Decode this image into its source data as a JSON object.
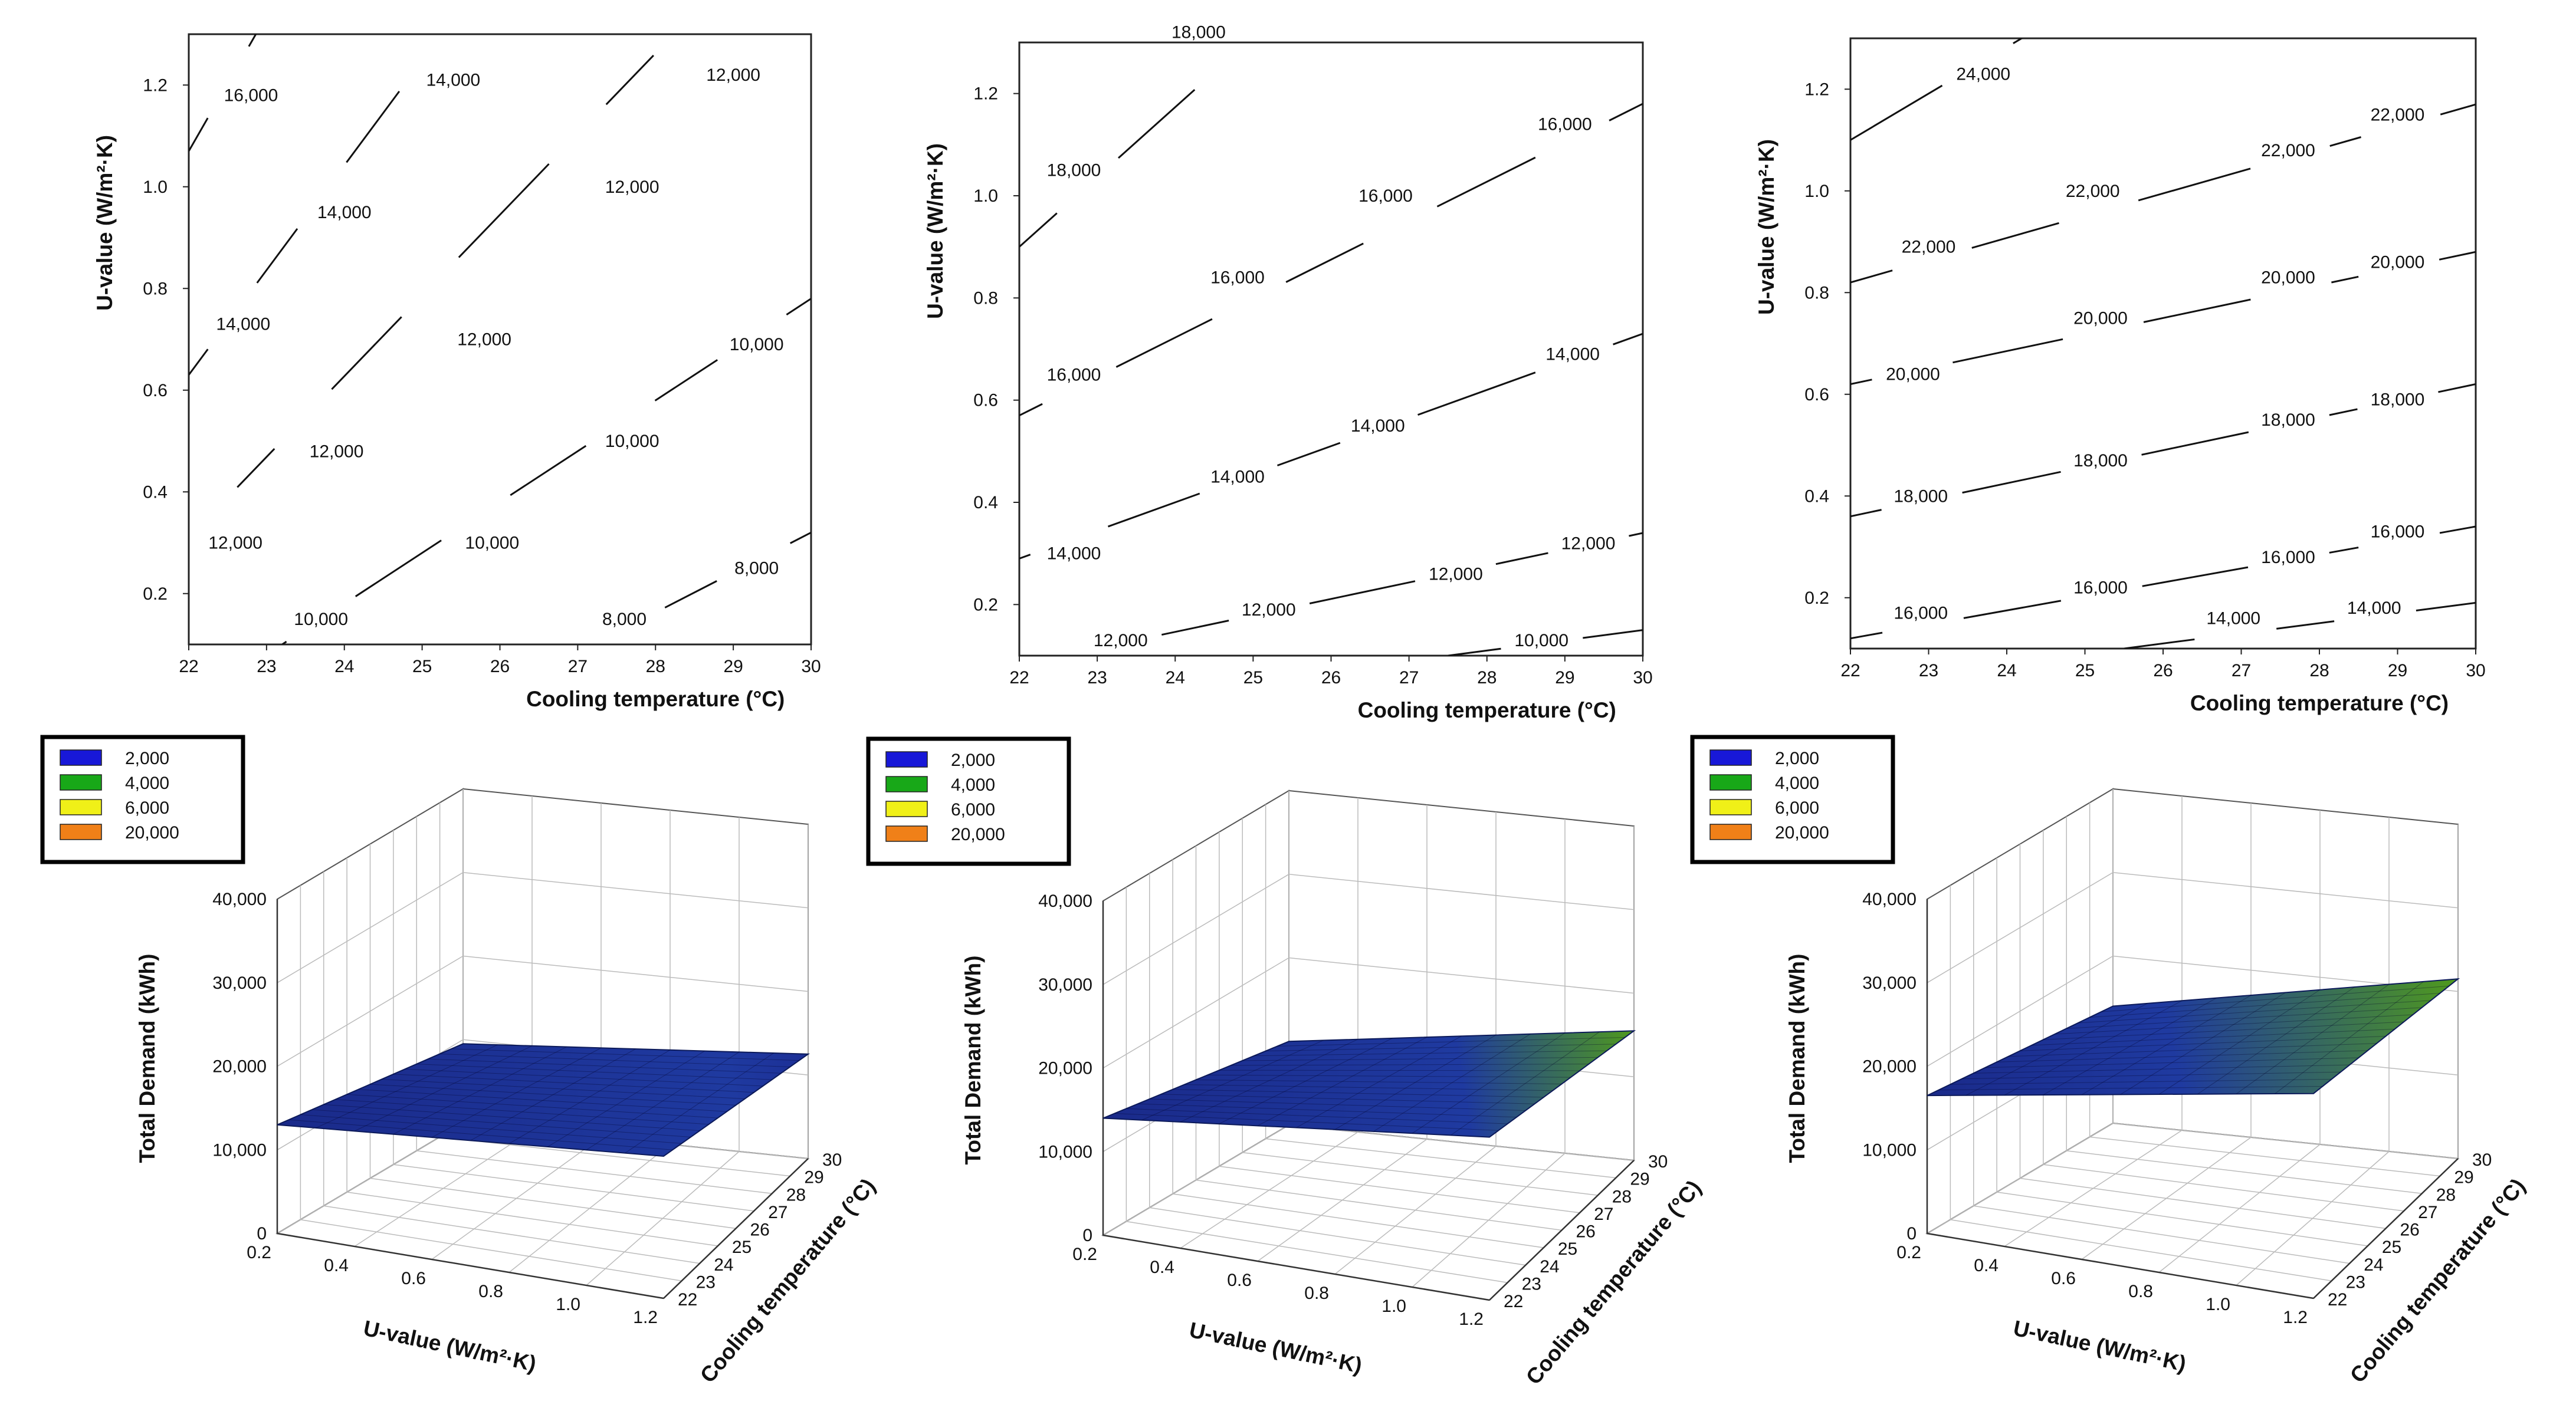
{
  "chart_data": [
    {
      "panel": "a-contour",
      "type": "contour",
      "xlabel": "Cooling temperature (°C)",
      "ylabel": "U-value (W/m²·K)",
      "xlim": [
        22,
        30
      ],
      "ylim": [
        0.1,
        1.3
      ],
      "xticks": [
        "22",
        "23",
        "24",
        "25",
        "26",
        "27",
        "28",
        "29",
        "30"
      ],
      "yticks": [
        "0.2",
        "0.4",
        "0.6",
        "0.8",
        "1.0",
        "1.2"
      ],
      "contours": [
        {
          "level": 16000,
          "points": [
            [
              22.0,
              1.07
            ],
            [
              22.9,
              1.31
            ]
          ],
          "labels": [
            {
              "text": "16,000",
              "x": 22.8,
              "y": 1.18
            }
          ]
        },
        {
          "level": 14000,
          "points": [
            [
              22.0,
              0.63
            ],
            [
              25.3,
              1.31
            ]
          ],
          "labels": [
            {
              "text": "14,000",
              "x": 25.4,
              "y": 1.21
            },
            {
              "text": "14,000",
              "x": 24.0,
              "y": 0.95
            },
            {
              "text": "14,000",
              "x": 22.7,
              "y": 0.73
            }
          ]
        },
        {
          "level": 12000,
          "points": [
            [
              22.0,
              0.31
            ],
            [
              28.3,
              1.31
            ]
          ],
          "labels": [
            {
              "text": "12,000",
              "x": 29.0,
              "y": 1.22
            },
            {
              "text": "12,000",
              "x": 27.7,
              "y": 1.0
            },
            {
              "text": "12,000",
              "x": 25.8,
              "y": 0.7
            },
            {
              "text": "12,000",
              "x": 23.9,
              "y": 0.48
            },
            {
              "text": "12,000",
              "x": 22.6,
              "y": 0.3
            }
          ]
        },
        {
          "level": 10000,
          "points": [
            [
              23.2,
              0.1
            ],
            [
              30.0,
              0.78
            ]
          ],
          "labels": [
            {
              "text": "10,000",
              "x": 29.3,
              "y": 0.69
            },
            {
              "text": "10,000",
              "x": 27.7,
              "y": 0.5
            },
            {
              "text": "10,000",
              "x": 25.9,
              "y": 0.3
            },
            {
              "text": "10,000",
              "x": 23.7,
              "y": 0.15
            }
          ]
        },
        {
          "level": 8000,
          "points": [
            [
              27.2,
              0.1
            ],
            [
              30.0,
              0.32
            ]
          ],
          "labels": [
            {
              "text": "8,000",
              "x": 29.3,
              "y": 0.25
            },
            {
              "text": "8,000",
              "x": 27.6,
              "y": 0.15
            }
          ]
        }
      ]
    },
    {
      "panel": "b-contour",
      "type": "contour",
      "xlabel": "Cooling temperature (°C)",
      "ylabel": "U-value (W/m²·K)",
      "xlim": [
        22,
        30
      ],
      "ylim": [
        0.1,
        1.3
      ],
      "xticks": [
        "22",
        "23",
        "24",
        "25",
        "26",
        "27",
        "28",
        "29",
        "30"
      ],
      "yticks": [
        "0.2",
        "0.4",
        "0.6",
        "0.8",
        "1.0",
        "1.2"
      ],
      "contours": [
        {
          "level": 18000,
          "points": [
            [
              22.0,
              0.9
            ],
            [
              25.0,
              1.31
            ]
          ],
          "labels": [
            {
              "text": "18,000",
              "x": 24.3,
              "y": 1.32
            },
            {
              "text": "18,000",
              "x": 22.7,
              "y": 1.05
            }
          ]
        },
        {
          "level": 16000,
          "points": [
            [
              22.0,
              0.57
            ],
            [
              30.0,
              1.18
            ]
          ],
          "labels": [
            {
              "text": "16,000",
              "x": 29.0,
              "y": 1.14
            },
            {
              "text": "16,000",
              "x": 26.7,
              "y": 1.0
            },
            {
              "text": "16,000",
              "x": 24.8,
              "y": 0.84
            },
            {
              "text": "16,000",
              "x": 22.7,
              "y": 0.65
            }
          ]
        },
        {
          "level": 14000,
          "points": [
            [
              22.0,
              0.29
            ],
            [
              30.0,
              0.73
            ]
          ],
          "labels": [
            {
              "text": "14,000",
              "x": 29.1,
              "y": 0.69
            },
            {
              "text": "14,000",
              "x": 26.6,
              "y": 0.55
            },
            {
              "text": "14,000",
              "x": 24.8,
              "y": 0.45
            },
            {
              "text": "14,000",
              "x": 22.7,
              "y": 0.3
            }
          ]
        },
        {
          "level": 12000,
          "points": [
            [
              23.8,
              0.14
            ],
            [
              30.0,
              0.34
            ]
          ],
          "labels": [
            {
              "text": "12,000",
              "x": 29.3,
              "y": 0.32
            },
            {
              "text": "12,000",
              "x": 27.6,
              "y": 0.26
            },
            {
              "text": "12,000",
              "x": 25.2,
              "y": 0.19
            },
            {
              "text": "12,000",
              "x": 23.3,
              "y": 0.13
            }
          ]
        },
        {
          "level": 10000,
          "points": [
            [
              27.5,
              0.1
            ],
            [
              30.0,
              0.15
            ]
          ],
          "labels": [
            {
              "text": "10,000",
              "x": 28.7,
              "y": 0.13
            }
          ]
        }
      ]
    },
    {
      "panel": "c-contour",
      "type": "contour",
      "xlabel": "Cooling temperature (°C)",
      "ylabel": "U-value (W/m²·K)",
      "xlim": [
        22,
        30
      ],
      "ylim": [
        0.1,
        1.3
      ],
      "xticks": [
        "22",
        "23",
        "24",
        "25",
        "26",
        "27",
        "28",
        "29",
        "30"
      ],
      "yticks": [
        "0.2",
        "0.4",
        "0.6",
        "0.8",
        "1.0",
        "1.2"
      ],
      "contours": [
        {
          "level": 24000,
          "points": [
            [
              22.0,
              1.1
            ],
            [
              24.3,
              1.31
            ]
          ],
          "labels": [
            {
              "text": "24,000",
              "x": 23.7,
              "y": 1.23
            }
          ]
        },
        {
          "level": 22000,
          "points": [
            [
              22.0,
              0.82
            ],
            [
              30.0,
              1.17
            ]
          ],
          "labels": [
            {
              "text": "22,000",
              "x": 29.0,
              "y": 1.15
            },
            {
              "text": "22,000",
              "x": 27.6,
              "y": 1.08
            },
            {
              "text": "22,000",
              "x": 25.1,
              "y": 1.0
            },
            {
              "text": "22,000",
              "x": 23.0,
              "y": 0.89
            }
          ]
        },
        {
          "level": 20000,
          "points": [
            [
              22.0,
              0.62
            ],
            [
              30.0,
              0.88
            ]
          ],
          "labels": [
            {
              "text": "20,000",
              "x": 29.0,
              "y": 0.86
            },
            {
              "text": "20,000",
              "x": 27.6,
              "y": 0.83
            },
            {
              "text": "20,000",
              "x": 25.2,
              "y": 0.75
            },
            {
              "text": "20,000",
              "x": 22.8,
              "y": 0.64
            }
          ]
        },
        {
          "level": 18000,
          "points": [
            [
              22.0,
              0.36
            ],
            [
              30.0,
              0.62
            ]
          ],
          "labels": [
            {
              "text": "18,000",
              "x": 29.0,
              "y": 0.59
            },
            {
              "text": "18,000",
              "x": 27.6,
              "y": 0.55
            },
            {
              "text": "18,000",
              "x": 25.2,
              "y": 0.47
            },
            {
              "text": "18,000",
              "x": 22.9,
              "y": 0.4
            }
          ]
        },
        {
          "level": 16000,
          "points": [
            [
              22.0,
              0.12
            ],
            [
              30.0,
              0.34
            ]
          ],
          "labels": [
            {
              "text": "16,000",
              "x": 29.0,
              "y": 0.33
            },
            {
              "text": "16,000",
              "x": 27.6,
              "y": 0.28
            },
            {
              "text": "16,000",
              "x": 25.2,
              "y": 0.22
            },
            {
              "text": "16,000",
              "x": 22.9,
              "y": 0.17
            }
          ]
        },
        {
          "level": 14000,
          "points": [
            [
              25.5,
              0.1
            ],
            [
              30.0,
              0.19
            ]
          ],
          "labels": [
            {
              "text": "14,000",
              "x": 28.7,
              "y": 0.18
            },
            {
              "text": "14,000",
              "x": 26.9,
              "y": 0.16
            }
          ]
        }
      ]
    },
    {
      "panel": "a-surface",
      "type": "surface3d",
      "zlabel": "Total Demand (kWh)",
      "ulabel": "U-value (W/m²·K)",
      "tlabel": "Cooling temperature (°C)",
      "zticks": [
        "0",
        "10,000",
        "20,000",
        "30,000",
        "40,000"
      ],
      "uticks": [
        "0.2",
        "0.4",
        "0.6",
        "0.8",
        "1.0",
        "1.2"
      ],
      "tticks": [
        "22",
        "23",
        "24",
        "25",
        "26",
        "27",
        "28",
        "29",
        "30"
      ],
      "zlim": [
        0,
        40000
      ],
      "ulim": [
        0.2,
        1.2
      ],
      "tlim": [
        22,
        30
      ],
      "corners": [
        {
          "u": 0.2,
          "t": 30,
          "z": 9500
        },
        {
          "u": 0.2,
          "t": 22,
          "z": 13000
        },
        {
          "u": 1.2,
          "t": 22,
          "z": 17000
        },
        {
          "u": 1.2,
          "t": 30,
          "z": 12500
        }
      ],
      "legend": [
        {
          "label": "2,000",
          "color": "#1818d8"
        },
        {
          "label": "4,000",
          "color": "#18a818"
        },
        {
          "label": "6,000",
          "color": "#f0f018"
        },
        {
          "label": "20,000",
          "color": "#f08018"
        }
      ]
    },
    {
      "panel": "b-surface",
      "type": "surface3d",
      "zlabel": "Total Demand (kWh)",
      "ulabel": "U-value (W/m²·K)",
      "tlabel": "Cooling temperature (°C)",
      "zticks": [
        "0",
        "10,000",
        "20,000",
        "30,000",
        "40,000"
      ],
      "uticks": [
        "0.2",
        "0.4",
        "0.6",
        "0.8",
        "1.0",
        "1.2"
      ],
      "tticks": [
        "22",
        "23",
        "24",
        "25",
        "26",
        "27",
        "28",
        "29",
        "30"
      ],
      "zlim": [
        0,
        40000
      ],
      "ulim": [
        0.2,
        1.2
      ],
      "tlim": [
        22,
        30
      ],
      "corners": [
        {
          "u": 0.2,
          "t": 30,
          "z": 10000
        },
        {
          "u": 0.2,
          "t": 22,
          "z": 14000
        },
        {
          "u": 1.2,
          "t": 22,
          "z": 19500
        },
        {
          "u": 1.2,
          "t": 30,
          "z": 15500
        }
      ],
      "legend": [
        {
          "label": "2,000",
          "color": "#1818d8"
        },
        {
          "label": "4,000",
          "color": "#18a818"
        },
        {
          "label": "6,000",
          "color": "#f0f018"
        },
        {
          "label": "20,000",
          "color": "#f08018"
        }
      ]
    },
    {
      "panel": "c-surface",
      "type": "surface3d",
      "zlabel": "Total Demand (kWh)",
      "ulabel": "U-value (W/m²·K)",
      "tlabel": "Cooling temperature (°C)",
      "zticks": [
        "0",
        "10,000",
        "20,000",
        "30,000",
        "40,000"
      ],
      "uticks": [
        "0.2",
        "0.4",
        "0.6",
        "0.8",
        "1.0",
        "1.2"
      ],
      "tticks": [
        "22",
        "23",
        "24",
        "25",
        "26",
        "27",
        "28",
        "29",
        "30"
      ],
      "zlim": [
        0,
        40000
      ],
      "ulim": [
        0.2,
        1.2
      ],
      "tlim": [
        22,
        30
      ],
      "corners": [
        {
          "u": 0.2,
          "t": 30,
          "z": 14000
        },
        {
          "u": 0.2,
          "t": 22,
          "z": 16500
        },
        {
          "u": 1.2,
          "t": 22,
          "z": 24500
        },
        {
          "u": 1.2,
          "t": 30,
          "z": 21500
        }
      ],
      "legend": [
        {
          "label": "2,000",
          "color": "#1818d8"
        },
        {
          "label": "4,000",
          "color": "#18a818"
        },
        {
          "label": "6,000",
          "color": "#f0f018"
        },
        {
          "label": "20,000",
          "color": "#f08018"
        }
      ]
    }
  ]
}
